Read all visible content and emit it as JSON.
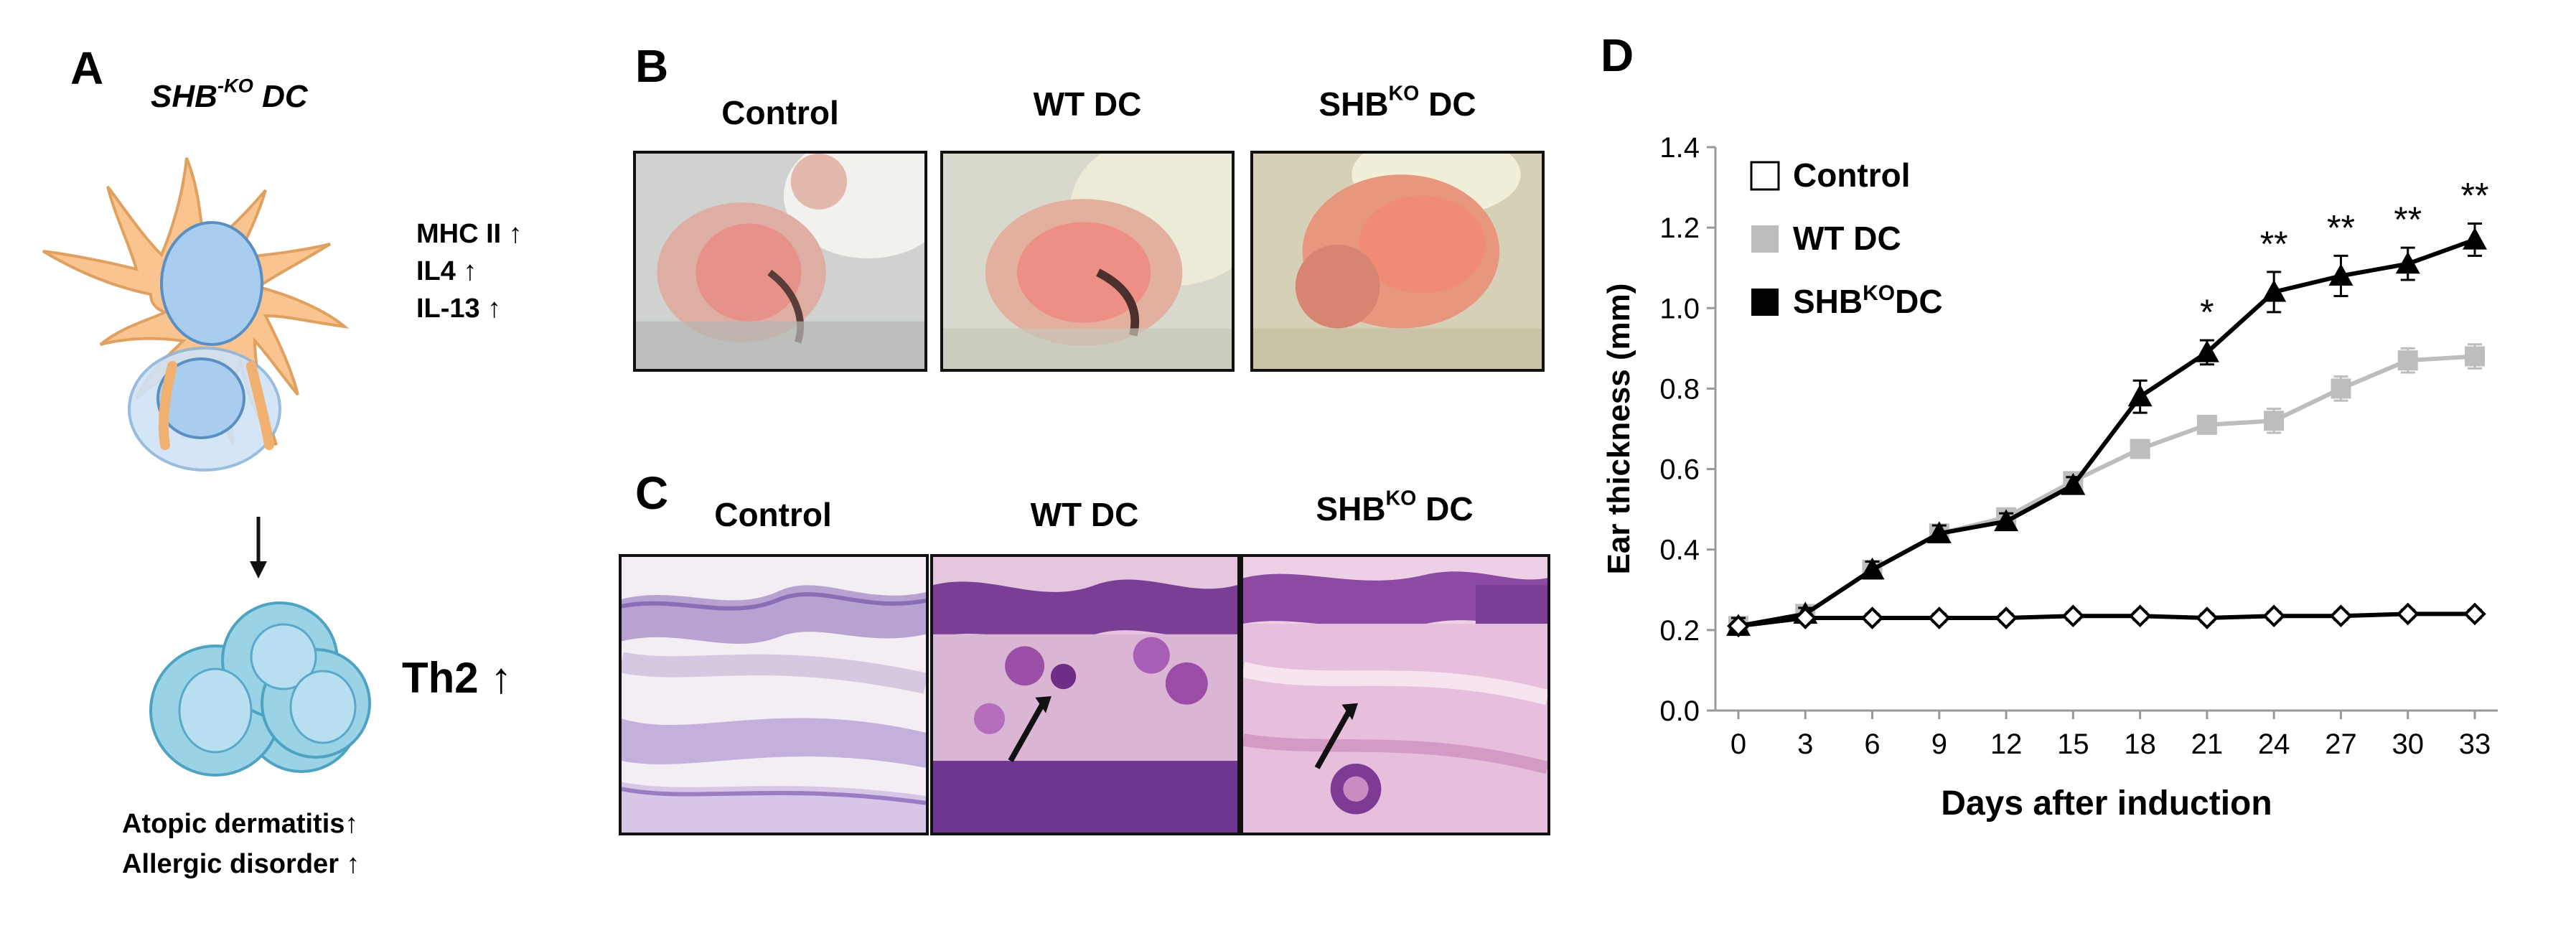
{
  "panel_a": {
    "letter": "A",
    "cell_label": "SHB",
    "cell_label_sup": "-KO",
    "cell_label_suffix": " DC",
    "markers": [
      "MHC II ↑",
      "IL4 ↑",
      "IL-13 ↑"
    ],
    "th2_label": "Th2 ↑",
    "outcomes": [
      "Atopic dermatitis↑",
      "Allergic disorder ↑"
    ],
    "colors": {
      "dc_body": "#f9c48f",
      "dc_outline": "#e0a060",
      "nucleus": "#a9cdee",
      "tcell": "#9ad3e6"
    }
  },
  "panel_b": {
    "letter": "B",
    "captions": [
      {
        "text": "Control",
        "sup": "",
        "suffix": ""
      },
      {
        "text": "WT DC",
        "sup": "",
        "suffix": ""
      },
      {
        "text": "SHB",
        "sup": "KO",
        "suffix": " DC"
      }
    ]
  },
  "panel_c": {
    "letter": "C",
    "captions": [
      {
        "text": "Control",
        "sup": "",
        "suffix": ""
      },
      {
        "text": "WT DC",
        "sup": "",
        "suffix": ""
      },
      {
        "text": "SHB",
        "sup": "KO",
        "suffix": " DC"
      }
    ]
  },
  "panel_d": {
    "letter": "D",
    "chart_data": {
      "type": "line",
      "xlabel": "Days after induction",
      "ylabel": "Ear thickness (mm)",
      "x": [
        0,
        3,
        6,
        9,
        12,
        15,
        18,
        21,
        24,
        27,
        30,
        33
      ],
      "xticks": [
        "0",
        "3",
        "6",
        "9",
        "12",
        "15",
        "18",
        "21",
        "24",
        "27",
        "30",
        "33"
      ],
      "ylim": [
        0,
        1.4
      ],
      "yticks": [
        "0.0",
        "0.2",
        "0.4",
        "0.6",
        "0.8",
        "1.0",
        "1.2",
        "1.4"
      ],
      "legend_position": "top-left",
      "series": [
        {
          "name": "Control",
          "name_sup": "",
          "name_suffix": "",
          "marker": "diamond-open",
          "line_color": "#000000",
          "fill": "#ffffff",
          "values": [
            0.21,
            0.23,
            0.23,
            0.23,
            0.23,
            0.235,
            0.235,
            0.23,
            0.235,
            0.235,
            0.24,
            0.24
          ],
          "errors": [
            0.02,
            0.01,
            0.01,
            0.01,
            0.01,
            0.01,
            0.01,
            0.01,
            0.01,
            0.01,
            0.01,
            0.01
          ]
        },
        {
          "name": "WT DC",
          "name_sup": "",
          "name_suffix": "",
          "marker": "square",
          "line_color": "#bdbdbd",
          "fill": "#bdbdbd",
          "values": [
            0.21,
            0.24,
            0.35,
            0.44,
            0.48,
            0.57,
            0.65,
            0.71,
            0.72,
            0.8,
            0.87,
            0.88
          ],
          "errors": [
            0.02,
            0.015,
            0.02,
            0.02,
            0.02,
            0.02,
            0.02,
            0.02,
            0.03,
            0.03,
            0.03,
            0.03
          ]
        },
        {
          "name": "SHB",
          "name_sup": "KO",
          "name_suffix": "DC",
          "marker": "triangle",
          "line_color": "#000000",
          "fill": "#000000",
          "values": [
            0.21,
            0.24,
            0.35,
            0.44,
            0.47,
            0.56,
            0.78,
            0.89,
            1.04,
            1.08,
            1.11,
            1.17
          ],
          "errors": [
            0.02,
            0.015,
            0.02,
            0.02,
            0.02,
            0.02,
            0.04,
            0.03,
            0.05,
            0.05,
            0.04,
            0.04
          ]
        }
      ],
      "annotations": [
        {
          "x": 21,
          "text": "*"
        },
        {
          "x": 24,
          "text": "**"
        },
        {
          "x": 27,
          "text": "**"
        },
        {
          "x": 30,
          "text": "**"
        },
        {
          "x": 33,
          "text": "**"
        }
      ]
    }
  }
}
